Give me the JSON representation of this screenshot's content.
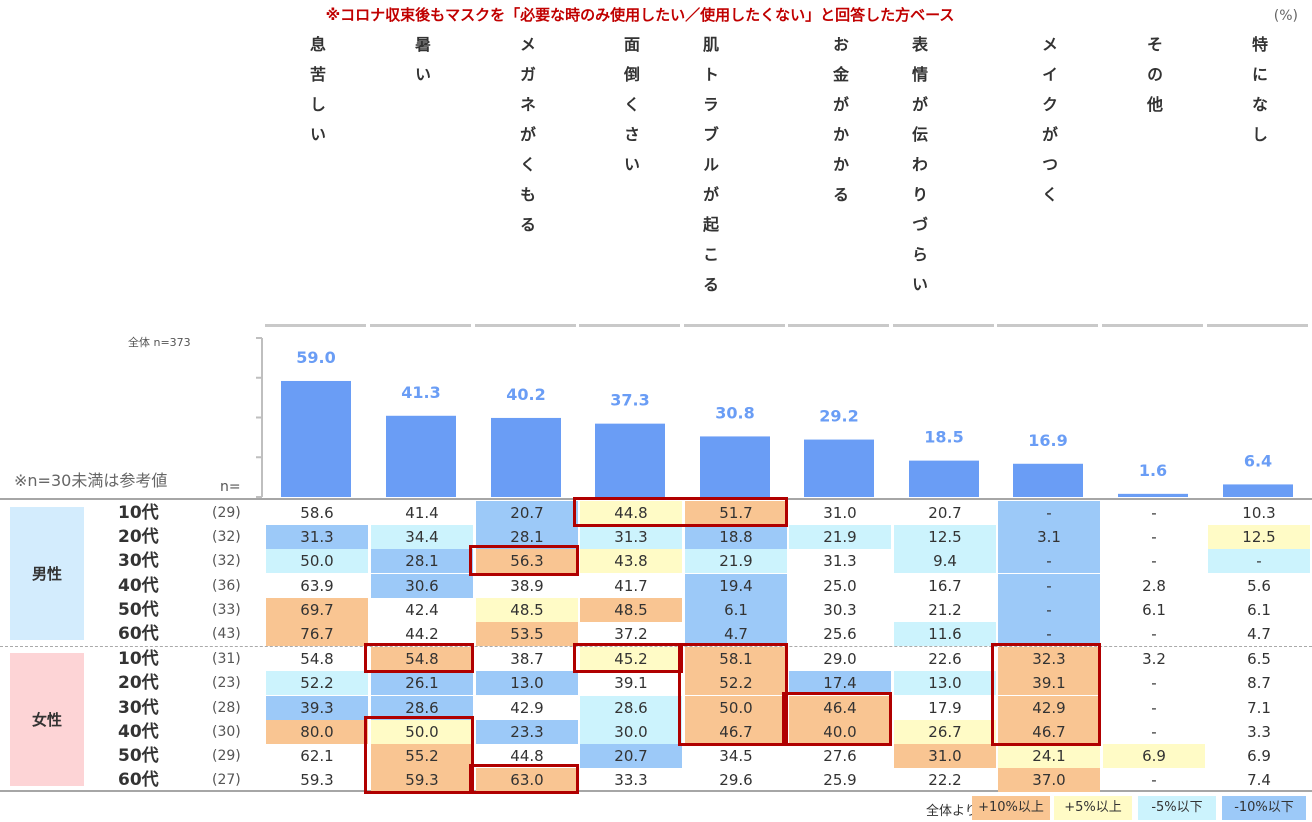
{
  "subtitle": "※コロナ収束後もマスクを「必要な時のみ使用したい／使用したくない」と回答した方ベース",
  "unit": "(%)",
  "total_label": "全体 n=373",
  "ref_note": "※n=30未満は参考値",
  "n_label": "n=",
  "legend": {
    "prefix": "全体より",
    "items": [
      {
        "label": "+10%以上",
        "color": "#f9c592"
      },
      {
        "label": "+5%以上",
        "color": "#fffbc6"
      },
      {
        "label": "-5%以下",
        "color": "#ccf3fd"
      },
      {
        "label": "-10%以下",
        "color": "#9cc9f8"
      }
    ]
  },
  "colors": {
    "bar": "#6a9df5",
    "bar_value_text": "#6a9df5",
    "up10": "#f9c592",
    "up5": "#fffbc6",
    "down5": "#ccf3fd",
    "down10": "#9cc9f8",
    "male_box": "#d3ecfd",
    "female_box": "#fdd4d6",
    "highlight_border": "#b00000"
  },
  "chart_data": {
    "type": "bar",
    "categories": [
      "息苦しい",
      "暑い",
      "メガネがくもる",
      "面倒くさい",
      "肌トラブルが起こる",
      "お金がかかる",
      "表情が伝わりづらい",
      "メイクがつく",
      "その他",
      "特になし"
    ],
    "values": [
      59.0,
      41.3,
      40.2,
      37.3,
      30.8,
      29.2,
      18.5,
      16.9,
      1.6,
      6.4
    ],
    "value_labels": [
      "59.0",
      "41.3",
      "40.2",
      "37.3",
      "30.8",
      "29.2",
      "18.5",
      "16.9",
      "1.6",
      "6.4"
    ],
    "ylim": [
      0,
      80
    ]
  },
  "groups": [
    {
      "label": "男性",
      "rows": [
        {
          "age": "10代",
          "n": "(29)",
          "values": [
            "58.6",
            "41.4",
            "20.7",
            "44.8",
            "51.7",
            "31.0",
            "20.7",
            "-",
            "-",
            "10.3"
          ],
          "shade": [
            "",
            "",
            "down10",
            "up5",
            "up10",
            "",
            "",
            "down10",
            "",
            ""
          ]
        },
        {
          "age": "20代",
          "n": "(32)",
          "values": [
            "31.3",
            "34.4",
            "28.1",
            "31.3",
            "18.8",
            "21.9",
            "12.5",
            "3.1",
            "-",
            "12.5"
          ],
          "shade": [
            "down10",
            "down5",
            "down10",
            "down5",
            "down10",
            "down5",
            "down5",
            "down10",
            "",
            "up5"
          ]
        },
        {
          "age": "30代",
          "n": "(32)",
          "values": [
            "50.0",
            "28.1",
            "56.3",
            "43.8",
            "21.9",
            "31.3",
            "9.4",
            "-",
            "-",
            "-"
          ],
          "shade": [
            "down5",
            "down10",
            "up10",
            "up5",
            "down5",
            "",
            "down5",
            "down10",
            "",
            "down5"
          ]
        },
        {
          "age": "40代",
          "n": "(36)",
          "values": [
            "63.9",
            "30.6",
            "38.9",
            "41.7",
            "19.4",
            "25.0",
            "16.7",
            "-",
            "2.8",
            "5.6"
          ],
          "shade": [
            "",
            "down10",
            "",
            "",
            "down10",
            "",
            "",
            "down10",
            "",
            ""
          ]
        },
        {
          "age": "50代",
          "n": "(33)",
          "values": [
            "69.7",
            "42.4",
            "48.5",
            "48.5",
            "6.1",
            "30.3",
            "21.2",
            "-",
            "6.1",
            "6.1"
          ],
          "shade": [
            "up10",
            "",
            "up5",
            "up10",
            "down10",
            "",
            "",
            "down10",
            "",
            ""
          ]
        },
        {
          "age": "60代",
          "n": "(43)",
          "values": [
            "76.7",
            "44.2",
            "53.5",
            "37.2",
            "4.7",
            "25.6",
            "11.6",
            "-",
            "-",
            "4.7"
          ],
          "shade": [
            "up10",
            "",
            "up10",
            "",
            "down10",
            "",
            "down5",
            "down10",
            "",
            ""
          ]
        }
      ]
    },
    {
      "label": "女性",
      "rows": [
        {
          "age": "10代",
          "n": "(31)",
          "values": [
            "54.8",
            "54.8",
            "38.7",
            "45.2",
            "58.1",
            "29.0",
            "22.6",
            "32.3",
            "3.2",
            "6.5"
          ],
          "shade": [
            "",
            "up10",
            "",
            "up5",
            "up10",
            "",
            "",
            "up10",
            "",
            ""
          ]
        },
        {
          "age": "20代",
          "n": "(23)",
          "values": [
            "52.2",
            "26.1",
            "13.0",
            "39.1",
            "52.2",
            "17.4",
            "13.0",
            "39.1",
            "-",
            "8.7"
          ],
          "shade": [
            "down5",
            "down10",
            "down10",
            "",
            "up10",
            "down10",
            "down5",
            "up10",
            "",
            ""
          ]
        },
        {
          "age": "30代",
          "n": "(28)",
          "values": [
            "39.3",
            "28.6",
            "42.9",
            "28.6",
            "50.0",
            "46.4",
            "17.9",
            "42.9",
            "-",
            "7.1"
          ],
          "shade": [
            "down10",
            "down10",
            "",
            "down5",
            "up10",
            "up10",
            "",
            "up10",
            "",
            ""
          ]
        },
        {
          "age": "40代",
          "n": "(30)",
          "values": [
            "80.0",
            "50.0",
            "23.3",
            "30.0",
            "46.7",
            "40.0",
            "26.7",
            "46.7",
            "-",
            "3.3"
          ],
          "shade": [
            "up10",
            "up5",
            "down10",
            "down5",
            "up10",
            "up10",
            "up5",
            "up10",
            "",
            ""
          ]
        },
        {
          "age": "50代",
          "n": "(29)",
          "values": [
            "62.1",
            "55.2",
            "44.8",
            "20.7",
            "34.5",
            "27.6",
            "31.0",
            "24.1",
            "6.9",
            "6.9"
          ],
          "shade": [
            "",
            "up10",
            "",
            "down10",
            "",
            "",
            "up10",
            "up5",
            "up5",
            ""
          ]
        },
        {
          "age": "60代",
          "n": "(27)",
          "values": [
            "59.3",
            "59.3",
            "63.0",
            "33.3",
            "29.6",
            "25.9",
            "22.2",
            "37.0",
            "-",
            "7.4"
          ],
          "shade": [
            "",
            "up10",
            "up10",
            "",
            "",
            "",
            "",
            "up10",
            "",
            ""
          ]
        }
      ]
    }
  ]
}
